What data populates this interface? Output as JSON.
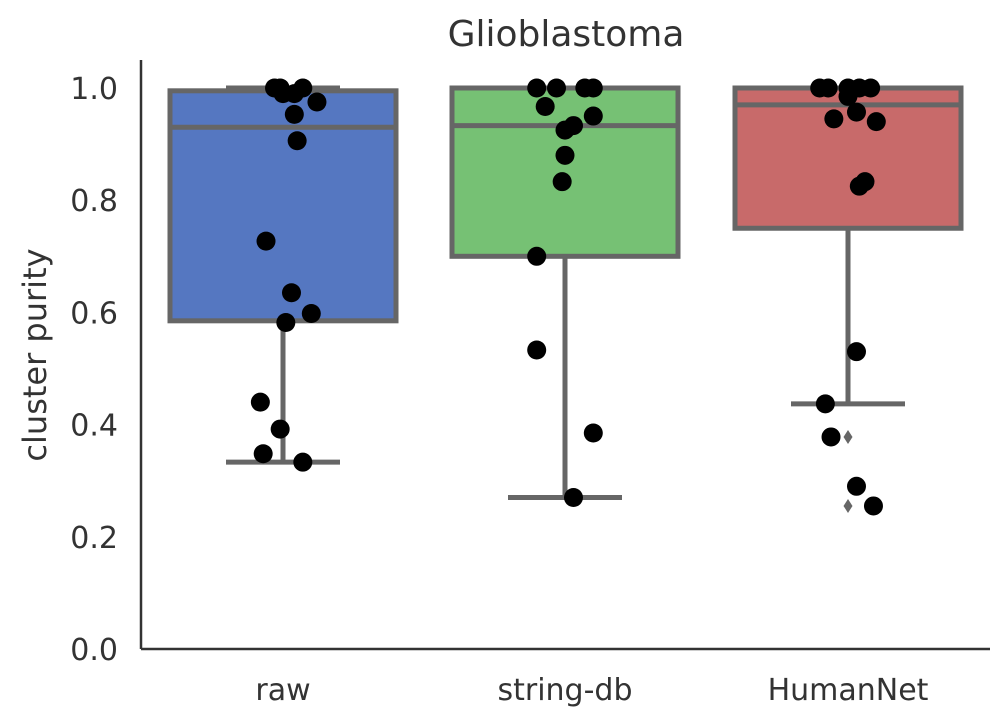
{
  "chart_data": {
    "type": "box",
    "title": "Glioblastoma",
    "xlabel": "",
    "ylabel": "cluster purity",
    "ylim": [
      0.0,
      1.05
    ],
    "yticks": [
      "0.0",
      "0.2",
      "0.4",
      "0.6",
      "0.8",
      "1.0"
    ],
    "ytick_values": [
      0.0,
      0.2,
      0.4,
      0.6,
      0.8,
      1.0
    ],
    "categories": [
      "raw",
      "string-db",
      "HumanNet"
    ],
    "grid": false,
    "boxes": [
      {
        "category": "raw",
        "color": "#5577C1",
        "q1": 0.585,
        "median": 0.93,
        "q3": 0.995,
        "whisker_low": 0.333,
        "whisker_high": 1.0,
        "outliers": [],
        "points": [
          {
            "x": -0.03,
            "y": 1.0
          },
          {
            "x": -0.01,
            "y": 1.0
          },
          {
            "x": 0.0,
            "y": 0.99
          },
          {
            "x": 0.07,
            "y": 1.0
          },
          {
            "x": 0.12,
            "y": 0.975
          },
          {
            "x": 0.04,
            "y": 0.99
          },
          {
            "x": 0.04,
            "y": 0.953
          },
          {
            "x": 0.05,
            "y": 0.906
          },
          {
            "x": -0.06,
            "y": 0.727
          },
          {
            "x": 0.03,
            "y": 0.635
          },
          {
            "x": 0.1,
            "y": 0.598
          },
          {
            "x": 0.01,
            "y": 0.582
          },
          {
            "x": -0.08,
            "y": 0.44
          },
          {
            "x": -0.01,
            "y": 0.392
          },
          {
            "x": -0.07,
            "y": 0.348
          },
          {
            "x": 0.07,
            "y": 0.333
          }
        ]
      },
      {
        "category": "string-db",
        "color": "#76C174",
        "q1": 0.7,
        "median": 0.933,
        "q3": 1.0,
        "whisker_low": 0.27,
        "whisker_high": 1.0,
        "outliers": [],
        "points": [
          {
            "x": -0.1,
            "y": 1.0
          },
          {
            "x": -0.03,
            "y": 1.0
          },
          {
            "x": 0.07,
            "y": 1.0
          },
          {
            "x": 0.1,
            "y": 1.0
          },
          {
            "x": -0.07,
            "y": 0.967
          },
          {
            "x": 0.1,
            "y": 0.95
          },
          {
            "x": 0.03,
            "y": 0.933
          },
          {
            "x": 0.0,
            "y": 0.925
          },
          {
            "x": 0.0,
            "y": 0.88
          },
          {
            "x": -0.01,
            "y": 0.833
          },
          {
            "x": -0.1,
            "y": 0.7
          },
          {
            "x": -0.1,
            "y": 0.533
          },
          {
            "x": 0.1,
            "y": 0.385
          },
          {
            "x": 0.03,
            "y": 0.27
          }
        ]
      },
      {
        "category": "HumanNet",
        "color": "#C86A6A",
        "q1": 0.75,
        "median": 0.97,
        "q3": 1.0,
        "whisker_low": 0.437,
        "whisker_high": 1.0,
        "outliers": [
          0.378,
          0.255
        ],
        "points": [
          {
            "x": -0.1,
            "y": 1.0
          },
          {
            "x": -0.07,
            "y": 1.0
          },
          {
            "x": 0.0,
            "y": 1.0
          },
          {
            "x": 0.04,
            "y": 1.0
          },
          {
            "x": 0.08,
            "y": 1.0
          },
          {
            "x": 0.0,
            "y": 0.985
          },
          {
            "x": 0.03,
            "y": 0.957
          },
          {
            "x": -0.05,
            "y": 0.945
          },
          {
            "x": 0.1,
            "y": 0.94
          },
          {
            "x": 0.06,
            "y": 0.833
          },
          {
            "x": 0.04,
            "y": 0.825
          },
          {
            "x": 0.03,
            "y": 0.53
          },
          {
            "x": -0.08,
            "y": 0.437
          },
          {
            "x": -0.06,
            "y": 0.378
          },
          {
            "x": 0.03,
            "y": 0.29
          },
          {
            "x": 0.09,
            "y": 0.255
          }
        ]
      }
    ]
  }
}
